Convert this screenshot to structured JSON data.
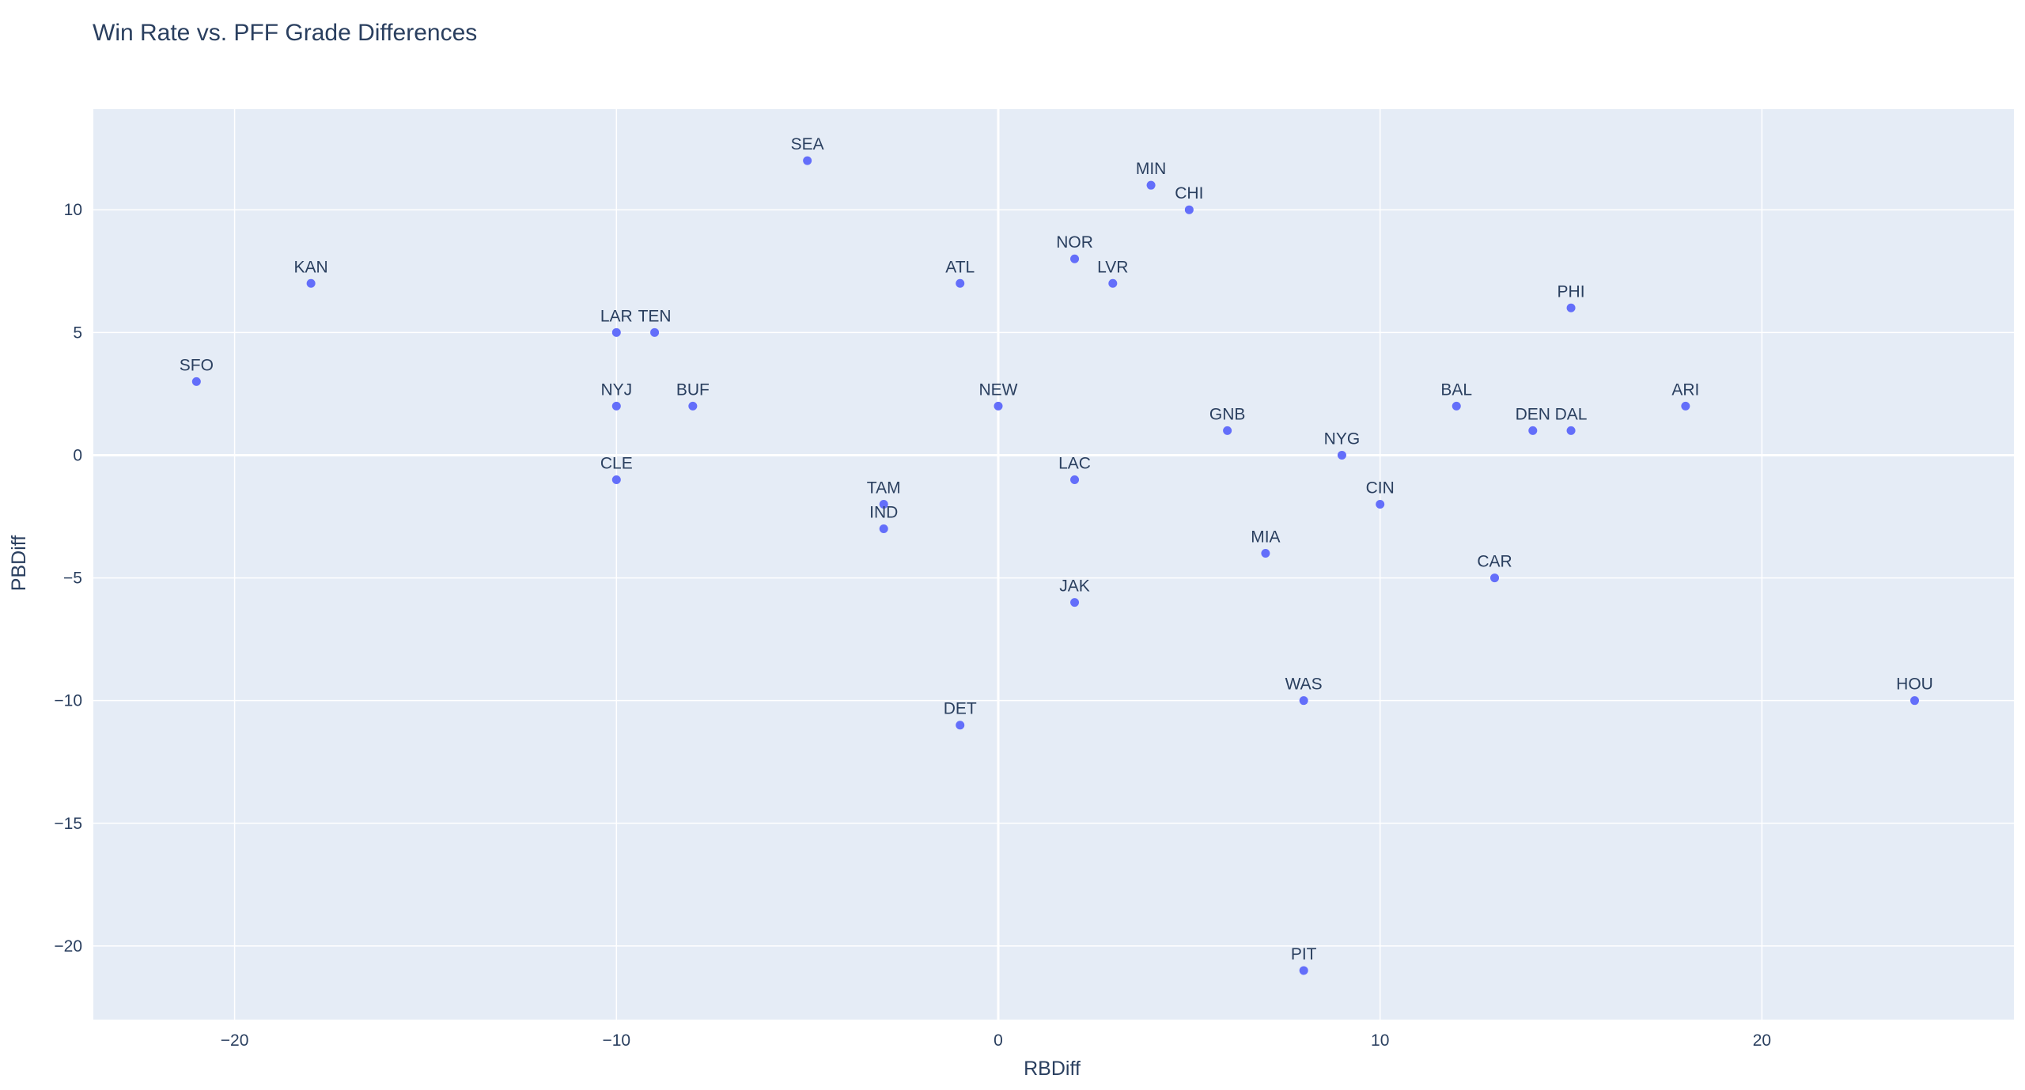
{
  "chart_data": {
    "type": "scatter",
    "title": "Win Rate vs. PFF Grade Differences",
    "xlabel": "RBDiff",
    "ylabel": "PBDiff",
    "xlim": [
      -23.7,
      26.6
    ],
    "ylim": [
      -23.0,
      14.1
    ],
    "x_ticks": [
      -20,
      -10,
      0,
      10,
      20
    ],
    "y_ticks": [
      -20,
      -15,
      -10,
      -5,
      0,
      5,
      10
    ],
    "grid": true,
    "marker_color": "#636efa",
    "plot_bg": "#e5ecf6",
    "points": [
      {
        "label": "SFO",
        "x": -21,
        "y": 3
      },
      {
        "label": "KAN",
        "x": -18,
        "y": 7
      },
      {
        "label": "LAR",
        "x": -10,
        "y": 5
      },
      {
        "label": "TEN",
        "x": -9,
        "y": 5
      },
      {
        "label": "NYJ",
        "x": -10,
        "y": 2
      },
      {
        "label": "BUF",
        "x": -8,
        "y": 2
      },
      {
        "label": "CLE",
        "x": -10,
        "y": -1
      },
      {
        "label": "SEA",
        "x": -5,
        "y": 12
      },
      {
        "label": "TAM",
        "x": -3,
        "y": -2
      },
      {
        "label": "IND",
        "x": -3,
        "y": -3
      },
      {
        "label": "ATL",
        "x": -1,
        "y": 7
      },
      {
        "label": "DET",
        "x": -1,
        "y": -11
      },
      {
        "label": "NEW",
        "x": 0,
        "y": 2
      },
      {
        "label": "NOR",
        "x": 2,
        "y": 8
      },
      {
        "label": "LAC",
        "x": 2,
        "y": -1
      },
      {
        "label": "JAK",
        "x": 2,
        "y": -6
      },
      {
        "label": "LVR",
        "x": 3,
        "y": 7
      },
      {
        "label": "MIN",
        "x": 4,
        "y": 11
      },
      {
        "label": "CHI",
        "x": 5,
        "y": 10
      },
      {
        "label": "GNB",
        "x": 6,
        "y": 1
      },
      {
        "label": "MIA",
        "x": 7,
        "y": -4
      },
      {
        "label": "WAS",
        "x": 8,
        "y": -10
      },
      {
        "label": "PIT",
        "x": 8,
        "y": -21
      },
      {
        "label": "NYG",
        "x": 9,
        "y": 0
      },
      {
        "label": "CIN",
        "x": 10,
        "y": -2
      },
      {
        "label": "BAL",
        "x": 12,
        "y": 2
      },
      {
        "label": "CAR",
        "x": 13,
        "y": -5
      },
      {
        "label": "DEN",
        "x": 14,
        "y": 1
      },
      {
        "label": "DAL",
        "x": 15,
        "y": 1
      },
      {
        "label": "PHI",
        "x": 15,
        "y": 6
      },
      {
        "label": "ARI",
        "x": 18,
        "y": 2
      },
      {
        "label": "HOU",
        "x": 24,
        "y": -10
      }
    ]
  }
}
